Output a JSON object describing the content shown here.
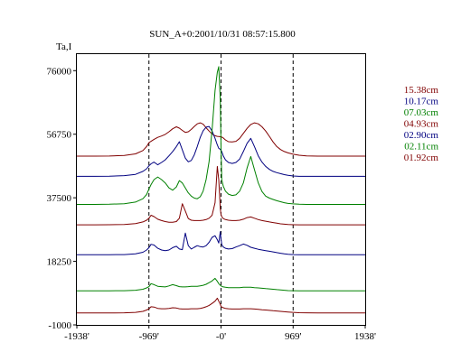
{
  "chart_data": {
    "type": "line",
    "title": "SUN_A+0:2001/10/31 08:57:15.800",
    "ylabel": "Ta,I",
    "xlabel": "",
    "x_ticks": [
      {
        "label": "-1938'",
        "value": -1938
      },
      {
        "label": "-969'",
        "value": -969
      },
      {
        "label": "-0'",
        "value": 0
      },
      {
        "label": "969'",
        "value": 969
      },
      {
        "label": "1938'",
        "value": 1938
      }
    ],
    "y_ticks": [
      {
        "label": "76000",
        "value": 76000
      },
      {
        "label": "56750",
        "value": 56750
      },
      {
        "label": "37500",
        "value": 37500
      },
      {
        "label": "18250",
        "value": 18250
      },
      {
        "label": "-1000",
        "value": -1000
      }
    ],
    "xlim": [
      -1938,
      1938
    ],
    "ylim": [
      -1000,
      81000
    ],
    "grid": false,
    "vertical_dashed_lines": [
      -969,
      0,
      969
    ],
    "legend_position": "right",
    "x": [
      -1938,
      -1700,
      -1500,
      -1300,
      -1150,
      -1050,
      -1000,
      -969,
      -940,
      -900,
      -850,
      -800,
      -750,
      -700,
      -650,
      -600,
      -560,
      -520,
      -480,
      -440,
      -400,
      -360,
      -320,
      -280,
      -240,
      -200,
      -160,
      -120,
      -80,
      -50,
      -30,
      -10,
      0,
      10,
      30,
      60,
      100,
      150,
      200,
      250,
      300,
      350,
      400,
      450,
      500,
      550,
      600,
      650,
      700,
      750,
      800,
      850,
      900,
      969,
      1050,
      1150,
      1300,
      1500,
      1700,
      1938
    ],
    "series": [
      {
        "name": "15.38cm",
        "color": "#800000",
        "values": [
          50100,
          50100,
          50150,
          50300,
          50800,
          51800,
          53000,
          54200,
          54600,
          55200,
          55800,
          56200,
          56700,
          57500,
          58400,
          59000,
          58600,
          57900,
          57300,
          57500,
          58200,
          59100,
          59900,
          60200,
          59800,
          58700,
          57700,
          56800,
          56300,
          56100,
          56050,
          56000,
          55980,
          55900,
          55600,
          55000,
          54500,
          54400,
          54600,
          55500,
          57000,
          58500,
          59700,
          60200,
          59900,
          59000,
          57700,
          56100,
          54400,
          53000,
          52100,
          51500,
          51100,
          50700,
          50400,
          50200,
          50100,
          50100,
          50100,
          50100
        ]
      },
      {
        "name": "10.17cm",
        "color": "#000080",
        "values": [
          44000,
          44000,
          44050,
          44200,
          44600,
          45500,
          46300,
          47200,
          47800,
          48300,
          47500,
          48200,
          49000,
          50200,
          51500,
          53000,
          54500,
          52000,
          49500,
          48400,
          48800,
          50500,
          53000,
          55800,
          57800,
          58900,
          59100,
          57700,
          55500,
          53500,
          52500,
          52200,
          51800,
          51500,
          50200,
          49000,
          48200,
          47900,
          48200,
          49200,
          51500,
          54000,
          55500,
          53000,
          50200,
          48300,
          47000,
          46100,
          45500,
          45100,
          44800,
          44500,
          44300,
          44100,
          44000,
          44000,
          44000,
          44000,
          44000,
          44000
        ]
      },
      {
        "name": "07.03cm",
        "color": "#008000",
        "values": [
          35500,
          35500,
          35550,
          35700,
          36200,
          37200,
          38500,
          40200,
          41500,
          43000,
          43800,
          43000,
          42000,
          40500,
          39800,
          40800,
          42700,
          42000,
          40500,
          39000,
          38000,
          37400,
          37200,
          37800,
          39500,
          43000,
          48500,
          58000,
          70000,
          75500,
          77200,
          67000,
          53000,
          43000,
          41000,
          39500,
          38600,
          38200,
          38400,
          39500,
          42000,
          46500,
          50000,
          46000,
          42000,
          39400,
          38000,
          37400,
          37000,
          36600,
          36300,
          36000,
          35800,
          35650,
          35550,
          35500,
          35500,
          35500,
          35500,
          35500
        ]
      },
      {
        "name": "04.93cm",
        "color": "#800000",
        "values": [
          29300,
          29300,
          29350,
          29400,
          29700,
          30200,
          30700,
          31300,
          32200,
          31800,
          31000,
          30600,
          30300,
          30100,
          30100,
          30300,
          31300,
          35700,
          33500,
          31200,
          30700,
          30600,
          30600,
          30600,
          30700,
          30900,
          31300,
          32200,
          36000,
          47000,
          43000,
          34200,
          32400,
          31800,
          31200,
          30900,
          30700,
          30600,
          30600,
          30700,
          31000,
          31500,
          31700,
          31300,
          30900,
          30600,
          30400,
          30200,
          30000,
          29800,
          29600,
          29500,
          29400,
          29350,
          29300,
          29300,
          29300,
          29300,
          29300,
          29300
        ]
      },
      {
        "name": "02.90cm",
        "color": "#000080",
        "values": [
          20250,
          20250,
          20270,
          20300,
          20500,
          21000,
          21700,
          22400,
          23400,
          23200,
          22200,
          21700,
          21500,
          21700,
          22400,
          22800,
          22000,
          21800,
          26800,
          23000,
          22000,
          22500,
          23000,
          22700,
          22600,
          23000,
          24000,
          25500,
          26000,
          24800,
          23800,
          27200,
          25000,
          23300,
          22600,
          22200,
          22000,
          22100,
          22600,
          23000,
          23500,
          23100,
          22500,
          22200,
          21900,
          21700,
          21500,
          21300,
          21100,
          20900,
          20700,
          20500,
          20400,
          20300,
          20270,
          20250,
          20250,
          20250,
          20250,
          20250
        ]
      },
      {
        "name": "02.11cm",
        "color": "#008000",
        "values": [
          9300,
          9300,
          9320,
          9350,
          9500,
          9800,
          10200,
          10600,
          11500,
          11200,
          10700,
          10600,
          10500,
          10800,
          11200,
          10900,
          10600,
          10500,
          10500,
          10600,
          10700,
          10700,
          10700,
          10800,
          11000,
          11300,
          11800,
          12300,
          13100,
          12200,
          11500,
          11000,
          10800,
          10700,
          10500,
          10400,
          10300,
          10300,
          10300,
          10300,
          10400,
          10400,
          10400,
          10300,
          10200,
          10100,
          10000,
          9900,
          9800,
          9700,
          9600,
          9500,
          9400,
          9350,
          9320,
          9300,
          9300,
          9300,
          9300,
          9300
        ]
      },
      {
        "name": "01.92cm",
        "color": "#800000",
        "values": [
          2600,
          2600,
          2620,
          2650,
          2800,
          3100,
          3500,
          3900,
          4500,
          4400,
          4000,
          3900,
          3900,
          4000,
          4200,
          4100,
          3900,
          3800,
          3800,
          3800,
          3900,
          3900,
          3900,
          4000,
          4200,
          4500,
          4900,
          5500,
          6200,
          7100,
          6200,
          5200,
          4600,
          4400,
          4200,
          4000,
          3900,
          3800,
          3800,
          3800,
          3900,
          3900,
          3900,
          3800,
          3700,
          3600,
          3500,
          3400,
          3300,
          3200,
          3100,
          3000,
          2900,
          2800,
          2700,
          2650,
          2620,
          2600,
          2600,
          2600
        ]
      }
    ]
  }
}
